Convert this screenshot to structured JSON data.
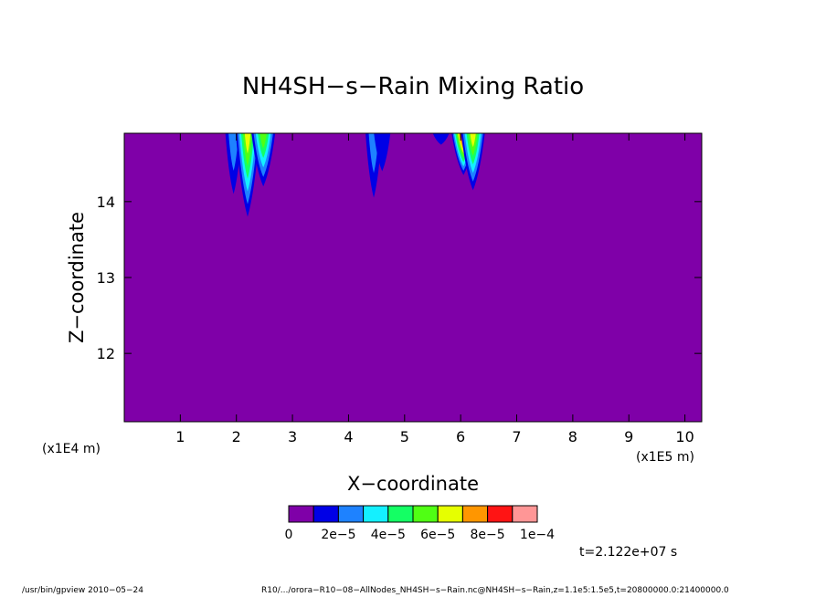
{
  "chart_data": {
    "type": "heatmap",
    "title": "NH4SH−s−Rain Mixing Ratio",
    "xlabel": "X−coordinate",
    "ylabel": "Z−coordinate",
    "x_unit_label": "(x1E5 m)",
    "y_unit_label": "(x1E4 m)",
    "xlim": [
      0,
      10.3
    ],
    "ylim": [
      11.1,
      14.9
    ],
    "x_ticks": [
      "1",
      "2",
      "3",
      "4",
      "5",
      "6",
      "7",
      "8",
      "9",
      "10"
    ],
    "y_ticks": [
      "12",
      "13",
      "14"
    ],
    "background_level_color": "#7f00a8",
    "color_levels": [
      "#7f00a8",
      "#0000e6",
      "#1e82ff",
      "#14f0ff",
      "#14ff64",
      "#50ff14",
      "#e6ff00",
      "#ff9600",
      "#ff1414",
      "#ff9696"
    ],
    "colorbar_labels": [
      "0",
      "2e−5",
      "4e−5",
      "6e−5",
      "8e−5",
      "1e−4"
    ],
    "features": [
      {
        "x": 1.95,
        "z_bottom": 14.1,
        "peak": 2.5e-05
      },
      {
        "x": 2.2,
        "z_bottom": 13.8,
        "peak": 7e-05
      },
      {
        "x": 2.48,
        "z_bottom": 14.2,
        "peak": 5e-05
      },
      {
        "x": 4.45,
        "z_bottom": 14.05,
        "peak": 2.5e-05
      },
      {
        "x": 4.6,
        "z_bottom": 14.4,
        "peak": 1.5e-05
      },
      {
        "x": 5.65,
        "z_bottom": 14.75,
        "peak": 1e-05
      },
      {
        "x": 6.05,
        "z_bottom": 14.35,
        "peak": 0.0001
      },
      {
        "x": 6.22,
        "z_bottom": 14.15,
        "peak": 7e-05
      }
    ]
  },
  "time_label": "t=2.122e+07 s",
  "footer": {
    "left": "/usr/bin/gpview  2010−05−24",
    "right": "R10/.../orora−R10−08−AllNodes_NH4SH−s−Rain.nc@NH4SH−s−Rain,z=1.1e5:1.5e5,t=20800000.0:21400000.0"
  }
}
